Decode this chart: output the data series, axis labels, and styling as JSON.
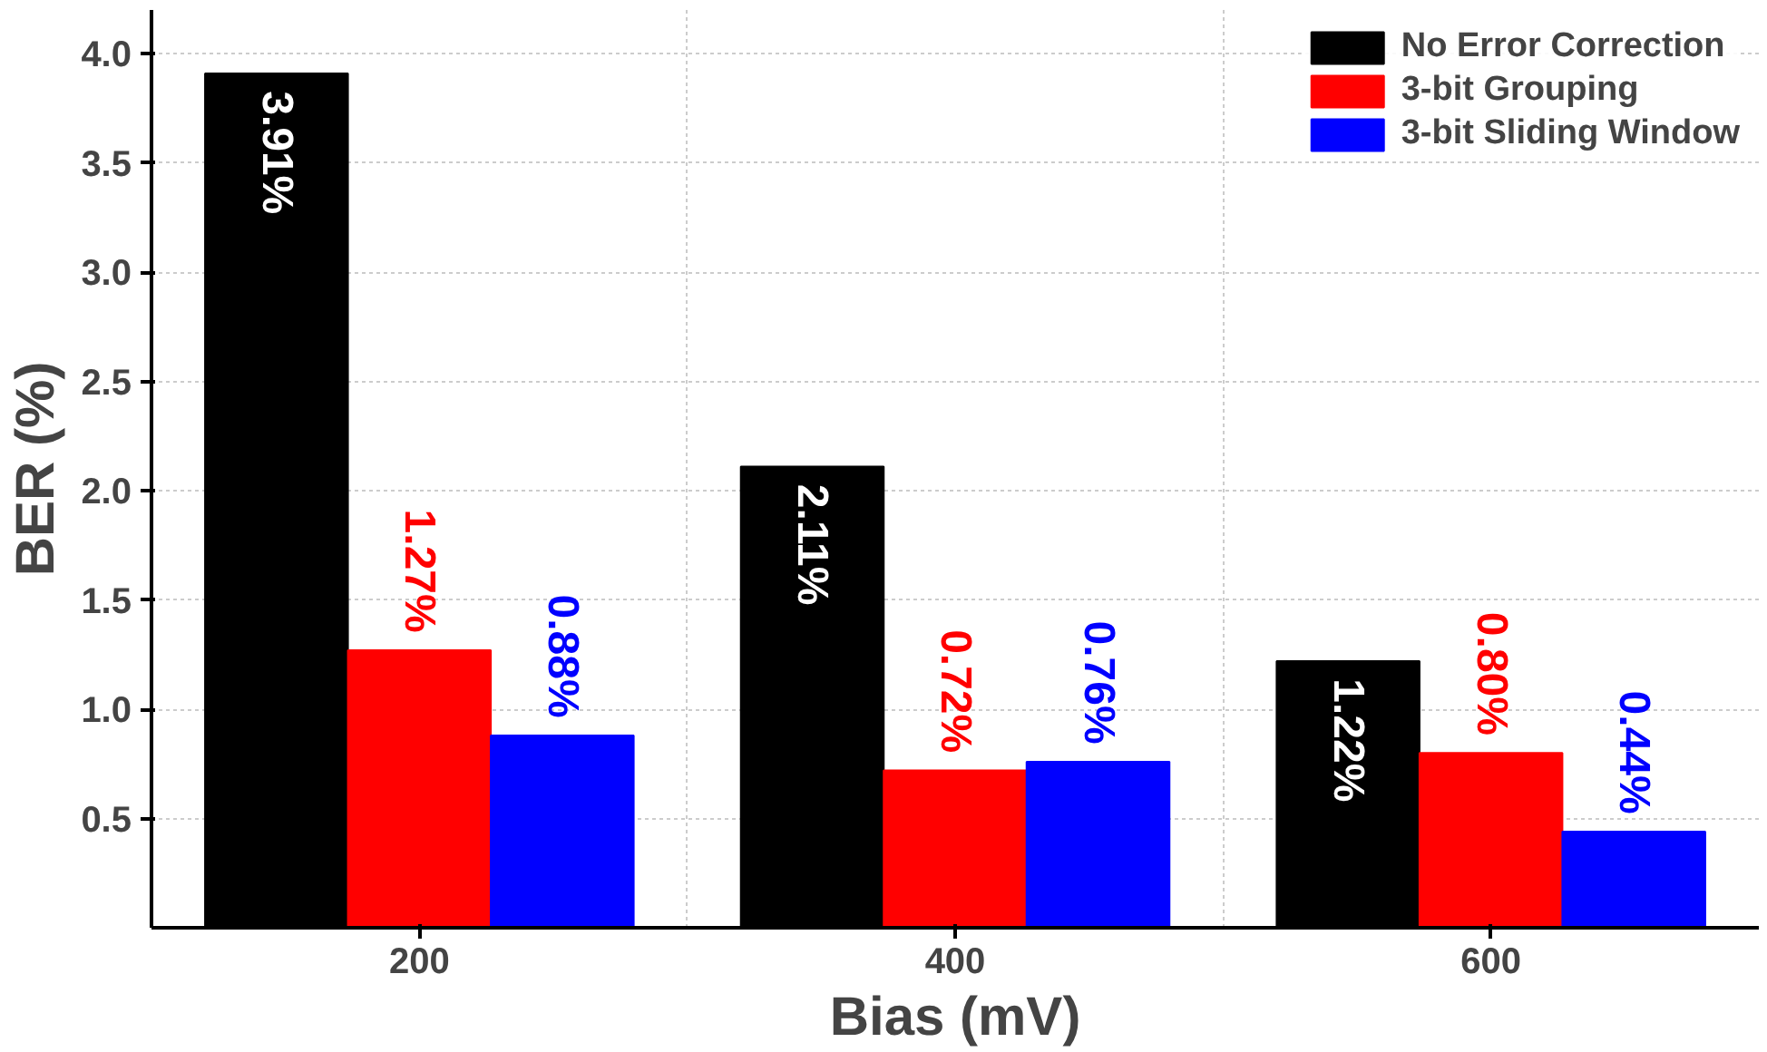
{
  "chart_data": {
    "type": "bar",
    "xlabel": "Bias (mV)",
    "ylabel": "BER (%)",
    "categories": [
      "200",
      "400",
      "600"
    ],
    "series": [
      {
        "name": "No Error Correction",
        "color": "#000000",
        "values": [
          3.91,
          2.11,
          1.22
        ],
        "value_labels": [
          "3.91%",
          "2.11%",
          "1.22%"
        ]
      },
      {
        "name": "3-bit Grouping",
        "color": "#ff0000",
        "values": [
          1.27,
          0.72,
          0.8
        ],
        "value_labels": [
          "1.27%",
          "0.72%",
          "0.80%"
        ]
      },
      {
        "name": "3-bit Sliding Window",
        "color": "#0000ff",
        "values": [
          0.88,
          0.76,
          0.44
        ],
        "value_labels": [
          "0.88%",
          "0.76%",
          "0.44%"
        ]
      }
    ],
    "ylim": [
      0,
      4.2
    ],
    "yticks": [
      0.5,
      {
        "value": 1,
        "label": "1.0"
      },
      1.5,
      {
        "value": 2,
        "label": "2.0"
      },
      2.5,
      {
        "value": 3,
        "label": "3.0"
      },
      3.5,
      {
        "value": 4,
        "label": "4.0"
      }
    ],
    "grid": true,
    "legend": "top right"
  }
}
